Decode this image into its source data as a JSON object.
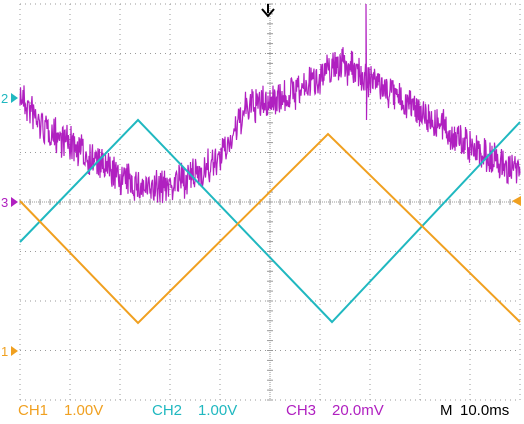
{
  "display": {
    "background": "#ffffff",
    "grid_color": "#9a9a9a",
    "grid_divisions": {
      "horizontal": 10,
      "vertical": 8
    },
    "minor_ticks_per_division": 5
  },
  "channels": [
    {
      "id": "CH1",
      "marker": "1",
      "color": "#f0a020",
      "label": "CH1",
      "scale": "1.00V",
      "waveform": "triangle"
    },
    {
      "id": "CH2",
      "marker": "2",
      "color": "#20b8c0",
      "label": "CH2",
      "scale": "1.00V",
      "waveform": "triangle"
    },
    {
      "id": "CH3",
      "marker": "3",
      "color": "#b020c0",
      "label": "CH3",
      "scale": "20.0mV",
      "waveform": "noisy"
    }
  ],
  "timebase": {
    "label": "M",
    "value": "10.0ms"
  },
  "trigger_marker": {
    "icon": "down-arrow-trigger-icon",
    "color": "#000000"
  },
  "trigger_level_marker": {
    "icon": "left-arrow-trigger-level-icon",
    "color": "#f0a020"
  }
}
